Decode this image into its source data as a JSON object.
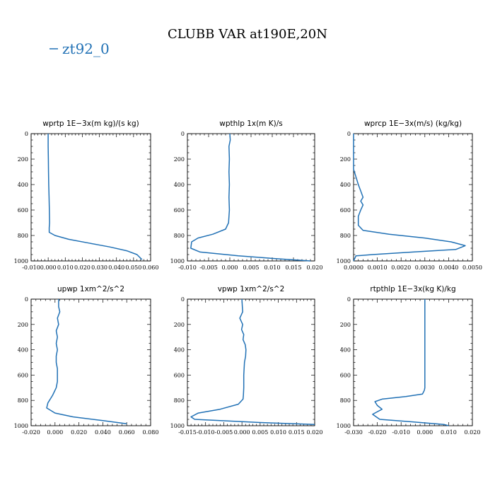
{
  "figure_title": "CLUBB VAR at190E,20N",
  "legend": {
    "label": "zt92_0",
    "color": "#2171b5"
  },
  "chart_data": [
    {
      "type": "line",
      "title": "wprtp   1E−3x(m kg)/(s kg)",
      "xlim": [
        -0.01,
        0.06
      ],
      "xticks": [
        "-0.010",
        "0.000",
        "0.010",
        "0.020",
        "0.030",
        "0.040",
        "0.050",
        "0.060"
      ],
      "ylim": [
        1000,
        0
      ],
      "yticks": [
        "0",
        "200",
        "400",
        "600",
        "800",
        "1000"
      ],
      "series": [
        {
          "x": [
            0.0,
            0.0,
            0.0001,
            0.0002,
            0.0003,
            0.0005,
            0.0007,
            0.0008,
            0.0006,
            0.0006,
            0.004,
            0.012,
            0.024,
            0.036,
            0.046,
            0.052,
            0.055
          ],
          "y": [
            0,
            100,
            200,
            300,
            400,
            500,
            600,
            700,
            740,
            775,
            800,
            830,
            860,
            890,
            920,
            950,
            990
          ]
        }
      ]
    },
    {
      "type": "line",
      "title": "wpthlp   1x(m K)/s",
      "xlim": [
        -0.01,
        0.02
      ],
      "xticks": [
        "-0.010",
        "-0.005",
        "0.000",
        "0.005",
        "0.010",
        "0.015",
        "0.020"
      ],
      "ylim": [
        1000,
        0
      ],
      "yticks": [
        "0",
        "200",
        "400",
        "600",
        "800",
        "1000"
      ],
      "series": [
        {
          "x": [
            0.0,
            0.0001,
            -0.0002,
            -0.0001,
            -0.0002,
            -0.0001,
            -0.0002,
            -0.0001,
            -0.0003,
            -0.001,
            -0.004,
            -0.0075,
            -0.009,
            -0.0092,
            -0.007,
            0.002,
            0.012,
            0.019
          ],
          "y": [
            0,
            50,
            100,
            200,
            300,
            400,
            500,
            600,
            700,
            750,
            790,
            820,
            850,
            900,
            930,
            960,
            985,
            1000
          ]
        }
      ]
    },
    {
      "type": "line",
      "title": "wprcp   1E−3x(m/s) (kg/kg)",
      "xlim": [
        0.0,
        0.005
      ],
      "xticks": [
        "0.0000",
        "0.0010",
        "0.0020",
        "0.0030",
        "0.0040",
        "0.0050"
      ],
      "ylim": [
        1000,
        0
      ],
      "yticks": [
        "0",
        "200",
        "400",
        "600",
        "800",
        "1000"
      ],
      "series": [
        {
          "x": [
            0.0,
            0.0,
            0.0,
            0.0001,
            0.0002,
            0.0003,
            0.0004,
            0.0003,
            0.0004,
            0.0003,
            0.0002,
            0.0002,
            0.0004,
            0.0015,
            0.003,
            0.0041,
            0.0047,
            0.0043,
            0.0025,
            0.0008,
            0.0001,
            0.0
          ],
          "y": [
            0,
            200,
            280,
            340,
            400,
            450,
            500,
            530,
            560,
            600,
            650,
            720,
            760,
            790,
            820,
            850,
            880,
            910,
            930,
            950,
            960,
            1000
          ]
        }
      ]
    },
    {
      "type": "line",
      "title": "upwp   1xm^2/s^2",
      "xlim": [
        -0.02,
        0.08
      ],
      "xticks": [
        "-0.020",
        "0.000",
        "0.020",
        "0.040",
        "0.060",
        "0.080"
      ],
      "ylim": [
        1000,
        0
      ],
      "yticks": [
        "0",
        "200",
        "400",
        "600",
        "800",
        "1000"
      ],
      "series": [
        {
          "x": [
            0.003,
            0.003,
            0.004,
            0.002,
            0.003,
            0.001,
            0.002,
            0.001,
            0.002,
            0.001,
            0.001,
            0.002,
            0.002,
            0.002,
            0.001,
            -0.002,
            -0.006,
            -0.007,
            0.0,
            0.015,
            0.04,
            0.06
          ],
          "y": [
            0,
            60,
            100,
            150,
            200,
            250,
            300,
            350,
            400,
            450,
            500,
            550,
            600,
            650,
            700,
            760,
            820,
            860,
            900,
            930,
            960,
            985
          ]
        }
      ]
    },
    {
      "type": "line",
      "title": "vpwp   1xm^2/s^2",
      "xlim": [
        -0.015,
        0.02
      ],
      "xticks": [
        "-0.015",
        "-0.010",
        "-0.005",
        "0.000",
        "0.005",
        "0.010",
        "0.015",
        "0.020"
      ],
      "ylim": [
        1000,
        0
      ],
      "yticks": [
        "0",
        "200",
        "400",
        "600",
        "800",
        "1000"
      ],
      "series": [
        {
          "x": [
            0.0,
            0.0001,
            0.0002,
            -0.0006,
            0.0002,
            -0.0001,
            0.0005,
            0.0003,
            0.0009,
            0.0011,
            0.001,
            0.0007,
            0.0005,
            0.0005,
            0.0004,
            0.0003,
            -0.001,
            -0.006,
            -0.012,
            -0.014,
            -0.013,
            0.005,
            0.02
          ],
          "y": [
            0,
            60,
            100,
            150,
            200,
            240,
            280,
            320,
            360,
            400,
            450,
            500,
            600,
            700,
            760,
            790,
            830,
            870,
            900,
            930,
            950,
            975,
            990
          ]
        }
      ]
    },
    {
      "type": "line",
      "title": "rtpthlp   1E−3x(kg K)/kg",
      "xlim": [
        -0.03,
        0.02
      ],
      "xticks": [
        "-0.030",
        "-0.020",
        "-0.010",
        "0.000",
        "0.010",
        "0.020"
      ],
      "ylim": [
        1000,
        0
      ],
      "yticks": [
        "0",
        "200",
        "400",
        "600",
        "800",
        "1000"
      ],
      "series": [
        {
          "x": [
            0.0,
            0.0,
            0.0,
            0.0,
            0.0,
            -0.0002,
            -0.001,
            -0.008,
            -0.018,
            -0.021,
            -0.02,
            -0.018,
            -0.022,
            -0.019,
            -0.005,
            0.008,
            0.01
          ],
          "y": [
            0,
            200,
            400,
            600,
            700,
            720,
            750,
            770,
            790,
            810,
            840,
            870,
            910,
            950,
            970,
            990,
            1000
          ]
        }
      ]
    }
  ]
}
